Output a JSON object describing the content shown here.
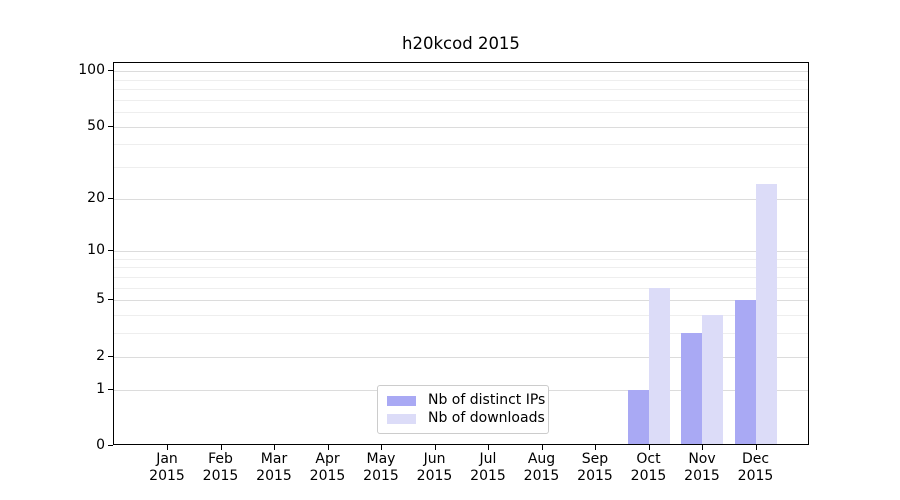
{
  "chart_data": {
    "type": "bar",
    "title": "h20kcod 2015",
    "categories": [
      "Jan",
      "Feb",
      "Mar",
      "Apr",
      "May",
      "Jun",
      "Jul",
      "Aug",
      "Sep",
      "Oct",
      "Nov",
      "Dec"
    ],
    "x_tick_sublabel": "2015",
    "series": [
      {
        "name": "Nb of distinct IPs",
        "color": "#a9a9f4",
        "values": [
          0,
          0,
          0,
          0,
          0,
          0,
          0,
          0,
          0,
          1,
          3,
          5
        ]
      },
      {
        "name": "Nb of downloads",
        "color": "#dcdcf8",
        "values": [
          0,
          0,
          0,
          0,
          0,
          0,
          0,
          0,
          0,
          6,
          4,
          24
        ]
      }
    ],
    "yscale": "log1p",
    "ylim": [
      0,
      110.5
    ],
    "yticks": [
      0,
      1,
      2,
      5,
      10,
      20,
      50,
      100
    ],
    "yticks_minor": [
      3,
      4,
      6,
      7,
      8,
      9,
      30,
      40,
      60,
      70,
      80,
      90
    ],
    "grid": "horizontal",
    "legend_position": "lower center",
    "colors": {
      "grid_major": "#dcdcdc",
      "grid_minor": "#eeeeee",
      "spine": "#000000",
      "text": "#000000",
      "legend_border": "#cccccc"
    }
  }
}
